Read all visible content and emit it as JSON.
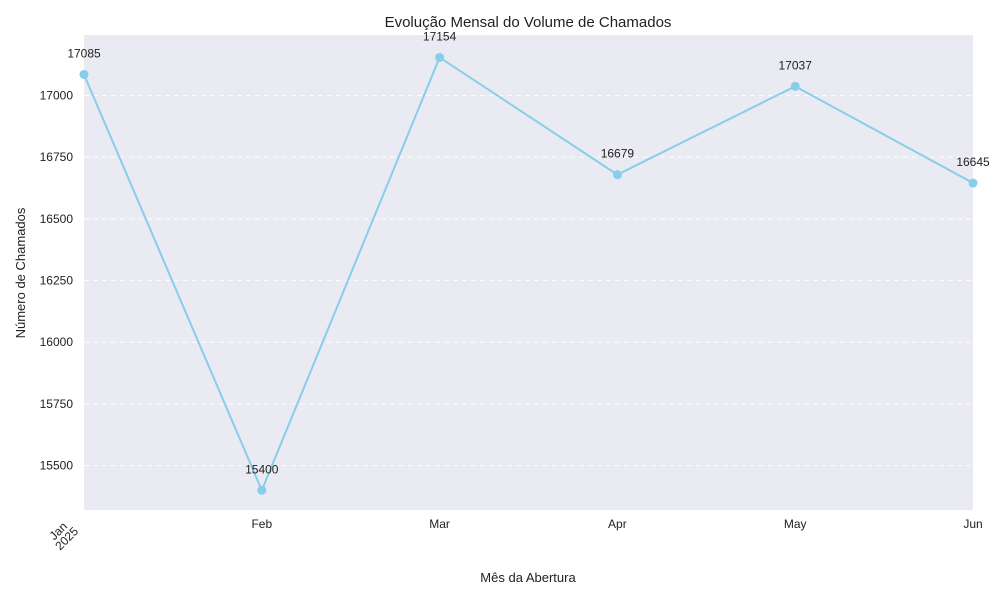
{
  "chart_data": {
    "type": "line",
    "title": "Evolução Mensal do Volume de Chamados",
    "xlabel": "Mês da Abertura",
    "ylabel": "Número de Chamados",
    "x_tick_labels": [
      {
        "month": "Jan",
        "year": "2025"
      },
      {
        "month": "Feb",
        "year": ""
      },
      {
        "month": "Mar",
        "year": ""
      },
      {
        "month": "Apr",
        "year": ""
      },
      {
        "month": "May",
        "year": ""
      },
      {
        "month": "Jun",
        "year": ""
      }
    ],
    "x": [
      "2025-01",
      "2025-02",
      "2025-03",
      "2025-04",
      "2025-05",
      "2025-06"
    ],
    "values": [
      17085,
      15400,
      17154,
      16679,
      17037,
      16645
    ],
    "data_labels": [
      "17085",
      "15400",
      "17154",
      "16679",
      "17037",
      "16645"
    ],
    "ylim": [
      15320,
      17245
    ],
    "y_ticks": [
      15500,
      15750,
      16000,
      16250,
      16500,
      16750,
      17000
    ],
    "grid": true,
    "colors": {
      "line": "#87ceeb",
      "plot_background": "#eaeaf2",
      "grid": "#ffffff"
    }
  }
}
